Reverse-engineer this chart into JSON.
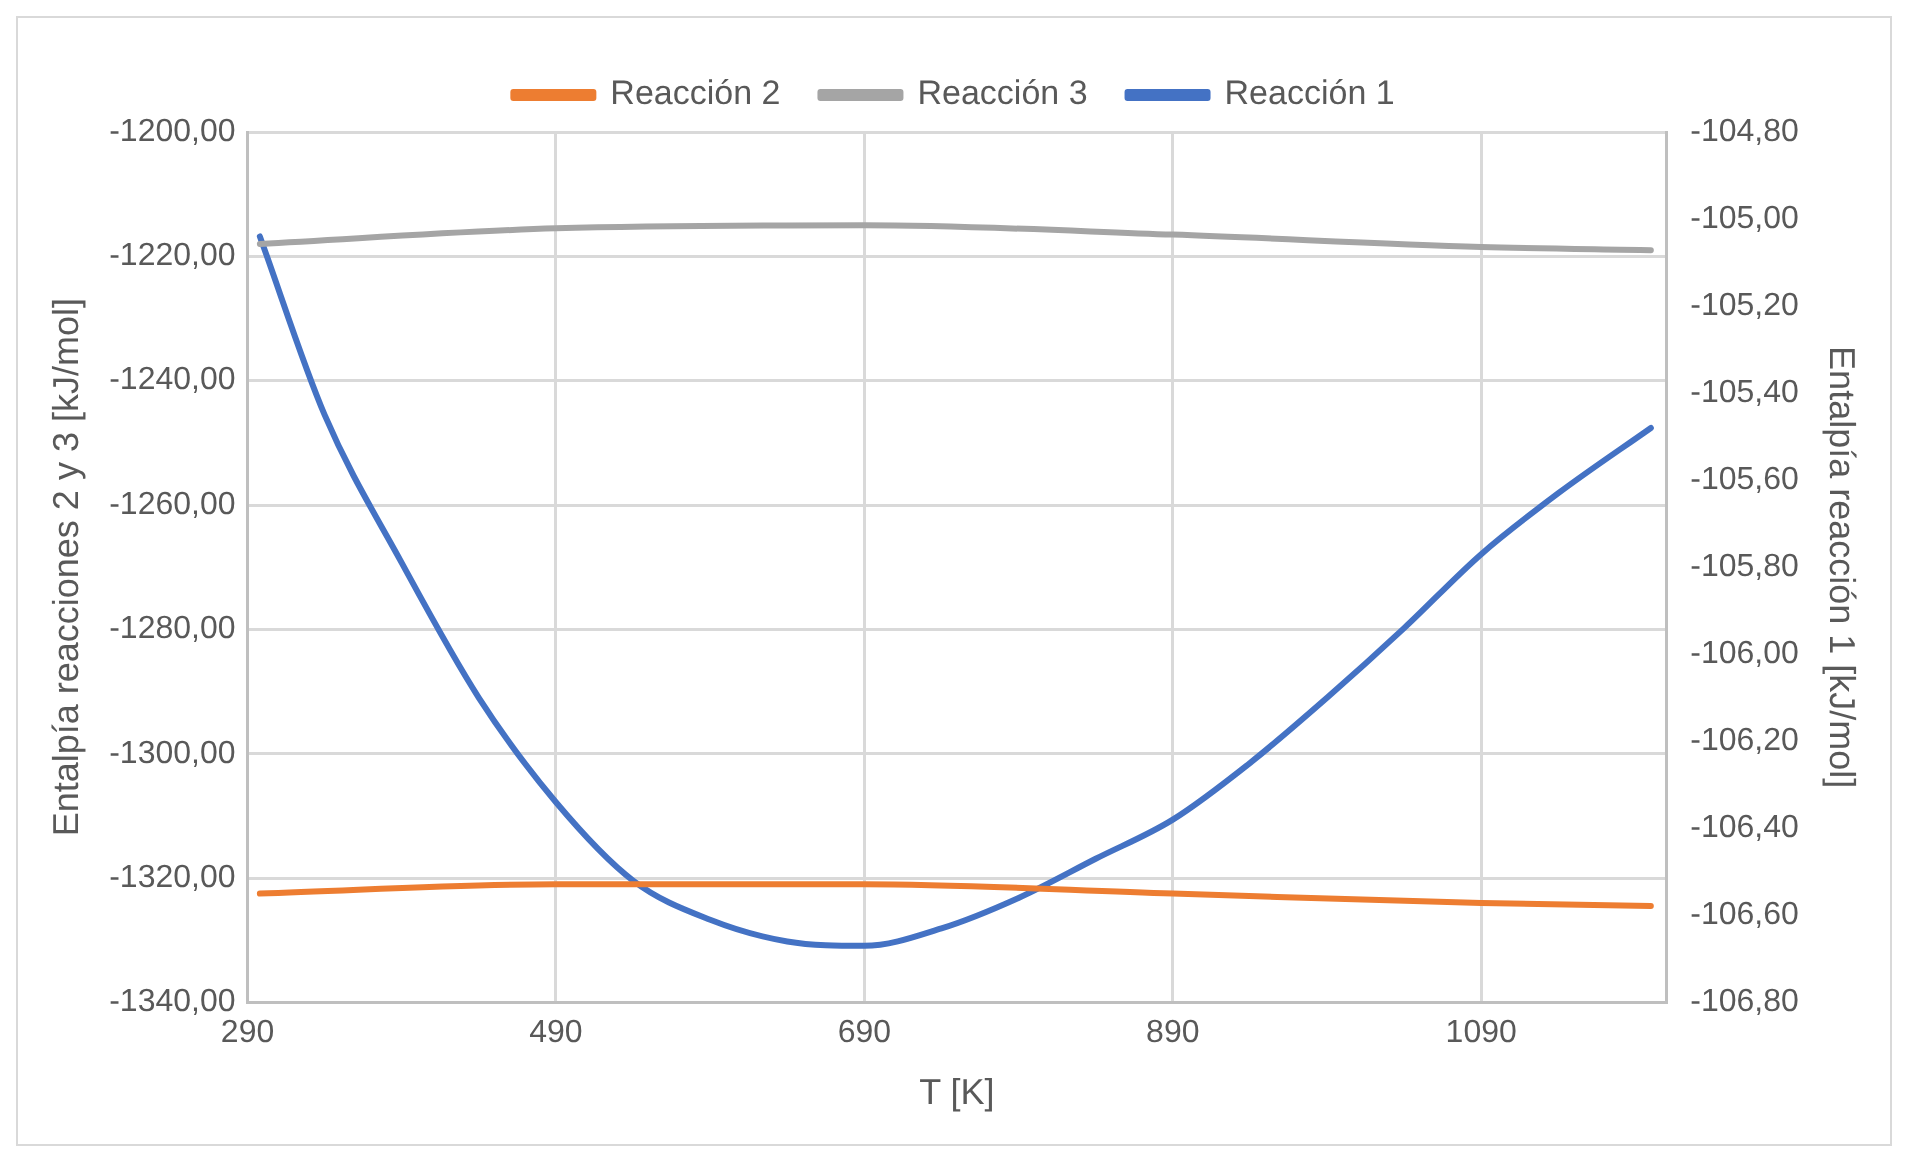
{
  "chart_data": {
    "type": "line",
    "xlabel": "T [K]",
    "ylabel": "Entalpía reacciones 2 y 3 [kJ/mol]",
    "y2label": "Entalpía reacción 1 [kJ/mol]",
    "xlim": [
      290,
      1210
    ],
    "xticks": [
      290,
      490,
      690,
      890,
      1090
    ],
    "ylim": [
      -1340,
      -1200
    ],
    "yticks": [
      {
        "value": -1340,
        "label": "-1340,00"
      },
      {
        "value": -1320,
        "label": "-1320,00"
      },
      {
        "value": -1300,
        "label": "-1300,00"
      },
      {
        "value": -1280,
        "label": "-1280,00"
      },
      {
        "value": -1260,
        "label": "-1260,00"
      },
      {
        "value": -1240,
        "label": "-1240,00"
      },
      {
        "value": -1220,
        "label": "-1220,00"
      },
      {
        "value": -1200,
        "label": "-1200,00"
      }
    ],
    "y2lim": [
      -106.8,
      -104.8
    ],
    "y2ticks": [
      {
        "value": -106.8,
        "label": "-106,80"
      },
      {
        "value": -106.6,
        "label": "-106,60"
      },
      {
        "value": -106.4,
        "label": "-106,40"
      },
      {
        "value": -106.2,
        "label": "-106,20"
      },
      {
        "value": -106,
        "label": "-106,00"
      },
      {
        "value": -105.8,
        "label": "-105,80"
      },
      {
        "value": -105.6,
        "label": "-105,60"
      },
      {
        "value": -105.4,
        "label": "-105,40"
      },
      {
        "value": -105.2,
        "label": "-105,20"
      },
      {
        "value": -105,
        "label": "-105,00"
      },
      {
        "value": -104.8,
        "label": "-104,80"
      }
    ],
    "grid": true,
    "legend": "top",
    "marker": "none",
    "line_style": "solid",
    "series": [
      {
        "name": "Reacción 2",
        "color": "#ed7d31",
        "x": [
          298,
          490,
          690,
          890,
          1090,
          1200
        ],
        "values": [
          -1322.5,
          -1321,
          -1321,
          -1322.5,
          -1324,
          -1324.5
        ]
      },
      {
        "name": "Reacción 3",
        "color": "#a5a5a5",
        "x": [
          298,
          490,
          690,
          890,
          1090,
          1200
        ],
        "values": [
          -1218,
          -1215.5,
          -1215,
          -1216.5,
          -1218.5,
          -1219
        ]
      },
      {
        "name": "Reacción 1",
        "color": "#4472c4",
        "axis": "y2",
        "x": [
          298,
          340,
          390,
          440,
          490,
          540,
          590,
          640,
          690,
          740,
          790,
          840,
          890,
          940,
          990,
          1040,
          1090,
          1140,
          1200
        ],
        "values": [
          -105.04,
          -105.45,
          -105.79,
          -106.1,
          -106.34,
          -106.52,
          -106.61,
          -106.66,
          -106.67,
          -106.63,
          -106.56,
          -106.47,
          -106.38,
          -106.25,
          -106.1,
          -105.94,
          -105.77,
          -105.63,
          -105.48
        ]
      }
    ]
  }
}
